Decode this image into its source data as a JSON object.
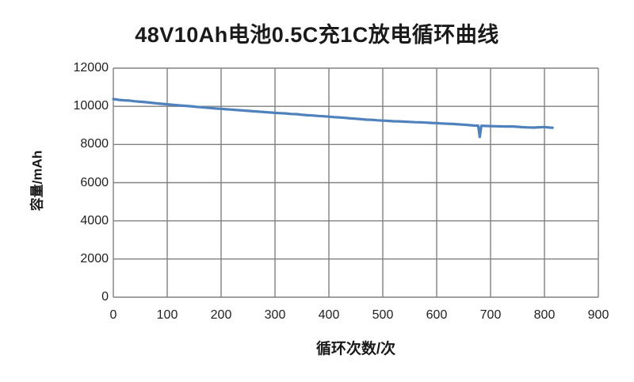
{
  "colors": {
    "line": "#4f81bd",
    "grid": "#808080",
    "text": "#1a1a1a",
    "background": "#ffffff"
  },
  "chart_data": {
    "type": "line",
    "title": "48V10Ah电池0.5C充1C放电循环曲线",
    "xlabel": "循环次数/次",
    "ylabel": "容量/mAh",
    "xlim": [
      0,
      900
    ],
    "ylim": [
      0,
      12000
    ],
    "x_ticks": [
      0,
      100,
      200,
      300,
      400,
      500,
      600,
      700,
      800,
      900
    ],
    "y_ticks": [
      0,
      2000,
      4000,
      6000,
      8000,
      10000,
      12000
    ],
    "grid": true,
    "legend": "none",
    "series": [
      {
        "name": "capacity",
        "color": "#4f81bd",
        "points": [
          [
            0,
            10380
          ],
          [
            10,
            10340
          ],
          [
            20,
            10315
          ],
          [
            30,
            10300
          ],
          [
            40,
            10265
          ],
          [
            50,
            10240
          ],
          [
            60,
            10218
          ],
          [
            70,
            10190
          ],
          [
            80,
            10158
          ],
          [
            90,
            10132
          ],
          [
            100,
            10108
          ],
          [
            110,
            10082
          ],
          [
            120,
            10052
          ],
          [
            130,
            10030
          ],
          [
            140,
            10012
          ],
          [
            150,
            9985
          ],
          [
            160,
            9958
          ],
          [
            170,
            9938
          ],
          [
            180,
            9912
          ],
          [
            190,
            9888
          ],
          [
            200,
            9868
          ],
          [
            210,
            9845
          ],
          [
            220,
            9828
          ],
          [
            230,
            9802
          ],
          [
            240,
            9788
          ],
          [
            250,
            9762
          ],
          [
            260,
            9740
          ],
          [
            270,
            9722
          ],
          [
            280,
            9698
          ],
          [
            290,
            9678
          ],
          [
            300,
            9660
          ],
          [
            310,
            9642
          ],
          [
            320,
            9628
          ],
          [
            330,
            9602
          ],
          [
            340,
            9592
          ],
          [
            350,
            9558
          ],
          [
            360,
            9532
          ],
          [
            370,
            9522
          ],
          [
            380,
            9498
          ],
          [
            390,
            9478
          ],
          [
            400,
            9458
          ],
          [
            410,
            9432
          ],
          [
            420,
            9418
          ],
          [
            430,
            9398
          ],
          [
            440,
            9368
          ],
          [
            450,
            9352
          ],
          [
            460,
            9328
          ],
          [
            470,
            9302
          ],
          [
            480,
            9292
          ],
          [
            490,
            9268
          ],
          [
            500,
            9252
          ],
          [
            510,
            9238
          ],
          [
            520,
            9220
          ],
          [
            530,
            9212
          ],
          [
            540,
            9196
          ],
          [
            550,
            9186
          ],
          [
            560,
            9170
          ],
          [
            570,
            9162
          ],
          [
            580,
            9146
          ],
          [
            590,
            9130
          ],
          [
            600,
            9118
          ],
          [
            610,
            9102
          ],
          [
            620,
            9088
          ],
          [
            630,
            9075
          ],
          [
            640,
            9058
          ],
          [
            650,
            9040
          ],
          [
            660,
            9015
          ],
          [
            670,
            8995
          ],
          [
            677,
            8985
          ],
          [
            680,
            8395
          ],
          [
            683,
            8980
          ],
          [
            690,
            8975
          ],
          [
            700,
            8965
          ],
          [
            710,
            8955
          ],
          [
            720,
            8948
          ],
          [
            730,
            8942
          ],
          [
            740,
            8950
          ],
          [
            750,
            8928
          ],
          [
            760,
            8906
          ],
          [
            770,
            8896
          ],
          [
            780,
            8886
          ],
          [
            790,
            8902
          ],
          [
            800,
            8914
          ],
          [
            810,
            8886
          ],
          [
            815,
            8876
          ]
        ]
      }
    ]
  }
}
